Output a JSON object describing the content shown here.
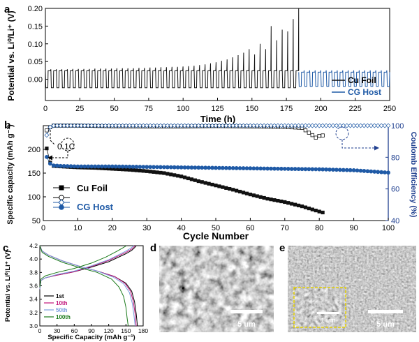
{
  "panels": [
    {
      "letter": "a"
    },
    {
      "letter": "b"
    },
    {
      "letter": "c"
    },
    {
      "letter": "d"
    },
    {
      "letter": "e"
    }
  ],
  "sem_images": {
    "d": {
      "scale_bar": "5 um"
    },
    "e": {
      "scale_bar": "5 um",
      "inset_scale_bar": "1 um"
    }
  },
  "colors": {
    "cu_foil": "#111111",
    "cg_host": "#1f5aa6",
    "axis_blue": "#1f3f8f",
    "inset_box": "#e6d200"
  },
  "chart_data": [
    {
      "panel": "a",
      "type": "line",
      "xlabel": "Time (h)",
      "ylabel": "Potential vs. Li⁰/Li⁺ (V)",
      "xlim": [
        0,
        250
      ],
      "ylim": [
        -0.06,
        0.2
      ],
      "xticks": [
        "0",
        "25",
        "50",
        "75",
        "100",
        "125",
        "150",
        "175",
        "200",
        "225",
        "250"
      ],
      "yticks": [
        "0.00",
        "0.05",
        "0.10",
        "0.15",
        "0.20"
      ],
      "legend": [
        "Cu Foil",
        "CG Host"
      ],
      "legend_position": "bottom-right",
      "series": [
        {
          "name": "Cu Foil",
          "cycle_period_h": 4,
          "plateau_v": 0.024,
          "stripping_v": -0.024,
          "spike_times_h": [
            4,
            8,
            12,
            16,
            20,
            24,
            28,
            32,
            36,
            40,
            44,
            48,
            52,
            56,
            60,
            64,
            68,
            72,
            76,
            80,
            84,
            88,
            92,
            96,
            100,
            104,
            108,
            112,
            116,
            120,
            124,
            128,
            132,
            136,
            140,
            144,
            148,
            152,
            156,
            160,
            164,
            168,
            172,
            176,
            180,
            184
          ],
          "spike_peaks_v": [
            0.028,
            0.028,
            0.028,
            0.028,
            0.029,
            0.029,
            0.029,
            0.029,
            0.03,
            0.03,
            0.03,
            0.03,
            0.031,
            0.031,
            0.031,
            0.031,
            0.032,
            0.032,
            0.033,
            0.033,
            0.034,
            0.034,
            0.035,
            0.035,
            0.036,
            0.037,
            0.038,
            0.04,
            0.042,
            0.045,
            0.048,
            0.052,
            0.056,
            0.062,
            0.068,
            0.075,
            0.085,
            0.07,
            0.1,
            0.085,
            0.15,
            0.11,
            0.14,
            0.135,
            0.17,
            0.2
          ],
          "end_time_h": 184
        },
        {
          "name": "CG Host",
          "cycle_period_h": 4,
          "plateau_v": 0.02,
          "stripping_v": -0.02,
          "spike_peaks_v": 0.025,
          "start_time_h": 184,
          "end_time_h": 250
        }
      ]
    },
    {
      "panel": "b",
      "type": "scatter",
      "xlabel": "Cycle Number",
      "ylabel": "Specific capacity (mAh g⁻¹)",
      "y2label": "Coulomb Efficiency (%)",
      "xlim": [
        0,
        100
      ],
      "ylim": [
        50,
        250
      ],
      "y2lim": [
        40,
        100
      ],
      "xticks": [
        "0",
        "10",
        "20",
        "30",
        "40",
        "50",
        "60",
        "70",
        "80",
        "90",
        "100"
      ],
      "yticks": [
        "50",
        "100",
        "150",
        "200"
      ],
      "y2ticks": [
        "40",
        "60",
        "80",
        "100"
      ],
      "annotation": "0.1C",
      "legend": [
        "Cu Foil",
        "CG Host"
      ],
      "legend_position": "bottom-left",
      "series": [
        {
          "name": "Cu Foil",
          "axis": "capacity",
          "marker": "filled-square",
          "x": [
            1,
            2,
            3,
            5,
            10,
            15,
            20,
            25,
            30,
            35,
            40,
            45,
            50,
            55,
            60,
            65,
            70,
            75,
            80,
            81
          ],
          "y": [
            202,
            172,
            165,
            164,
            162,
            161,
            159,
            157,
            154,
            150,
            143,
            133,
            124,
            115,
            105,
            96,
            89,
            80,
            69,
            67
          ]
        },
        {
          "name": "Cu Foil",
          "axis": "efficiency",
          "marker": "open-square",
          "x": [
            1,
            2,
            3,
            10,
            20,
            30,
            40,
            50,
            60,
            70,
            75,
            78,
            79,
            80,
            81
          ],
          "y": [
            97,
            99,
            100,
            100,
            99.6,
            99.5,
            99.5,
            99.7,
            99.5,
            99.2,
            98.6,
            94,
            92.4,
            93.5,
            93.8
          ]
        },
        {
          "name": "CG Host",
          "axis": "capacity",
          "marker": "filled-circle",
          "x": [
            1,
            2,
            3,
            5,
            10,
            20,
            30,
            40,
            50,
            60,
            70,
            80,
            90,
            100
          ],
          "y": [
            184,
            170,
            166,
            165,
            164,
            164,
            163,
            162,
            161,
            160,
            159,
            158,
            156,
            151
          ]
        },
        {
          "name": "CG Host",
          "axis": "efficiency",
          "marker": "open-diamond",
          "x": [
            1,
            2,
            3,
            10,
            20,
            30,
            40,
            50,
            60,
            70,
            80,
            90,
            100
          ],
          "y": [
            94,
            99,
            100,
            100,
            100,
            100,
            100,
            100,
            100,
            100,
            100,
            100,
            100
          ]
        }
      ]
    },
    {
      "panel": "c",
      "type": "line",
      "xlabel": "Specific Capacity (mAh g⁻¹)",
      "ylabel": "Potential vs. Li⁰/Li⁺ (V)",
      "xlim": [
        0,
        180
      ],
      "ylim": [
        3.0,
        4.2
      ],
      "xticks": [
        "0",
        "30",
        "60",
        "90",
        "120",
        "150",
        "180"
      ],
      "yticks": [
        "3.0",
        "3.2",
        "3.4",
        "3.6",
        "3.8",
        "4.0",
        "4.2"
      ],
      "legend": [
        "1st",
        "10th",
        "50th",
        "100th"
      ],
      "legend_position": "bottom-left",
      "series": [
        {
          "name": "1st",
          "color": "#000000",
          "charge": {
            "x": [
              0,
              2,
              10,
              30,
              60,
              90,
              120,
              150,
              160,
              165,
              168
            ],
            "y": [
              3.55,
              3.68,
              3.72,
              3.76,
              3.81,
              3.88,
              3.96,
              4.08,
              4.13,
              4.17,
              4.2
            ]
          },
          "discharge": {
            "x": [
              0,
              4,
              15,
              40,
              70,
              100,
              130,
              150,
              160,
              165,
              168,
              170
            ],
            "y": [
              4.2,
              4.12,
              4.06,
              3.97,
              3.89,
              3.82,
              3.74,
              3.64,
              3.52,
              3.36,
              3.18,
              3.0
            ]
          }
        },
        {
          "name": "10th",
          "color": "#c0147a",
          "charge": {
            "x": [
              0,
              2,
              10,
              30,
              60,
              90,
              120,
              150,
              160,
              166
            ],
            "y": [
              3.55,
              3.68,
              3.72,
              3.76,
              3.81,
              3.89,
              3.98,
              4.1,
              4.15,
              4.2
            ]
          },
          "discharge": {
            "x": [
              0,
              4,
              15,
              40,
              70,
              100,
              130,
              148,
              158,
              163,
              166,
              168
            ],
            "y": [
              4.2,
              4.12,
              4.06,
              3.97,
              3.89,
              3.82,
              3.74,
              3.64,
              3.52,
              3.36,
              3.18,
              3.0
            ]
          }
        },
        {
          "name": "50th",
          "color": "#7c9fe0",
          "charge": {
            "x": [
              0,
              2,
              10,
              30,
              60,
              90,
              120,
              148,
              158,
              164
            ],
            "y": [
              3.55,
              3.68,
              3.72,
              3.77,
              3.82,
              3.9,
              3.99,
              4.11,
              4.16,
              4.2
            ]
          },
          "discharge": {
            "x": [
              0,
              4,
              15,
              40,
              70,
              100,
              128,
              146,
              156,
              161,
              164,
              166
            ],
            "y": [
              4.2,
              4.12,
              4.06,
              3.97,
              3.89,
              3.82,
              3.73,
              3.63,
              3.5,
              3.34,
              3.16,
              3.0
            ]
          }
        },
        {
          "name": "100th",
          "color": "#1a7a1a",
          "charge": {
            "x": [
              0,
              2,
              10,
              30,
              60,
              90,
              115,
              135,
              145,
              151
            ],
            "y": [
              3.58,
              3.7,
              3.75,
              3.8,
              3.86,
              3.94,
              4.03,
              4.12,
              4.17,
              4.2
            ]
          },
          "discharge": {
            "x": [
              0,
              4,
              15,
              40,
              70,
              100,
              125,
              138,
              146,
              150,
              152,
              154
            ],
            "y": [
              4.2,
              4.1,
              4.04,
              3.95,
              3.87,
              3.8,
              3.7,
              3.58,
              3.44,
              3.28,
              3.12,
              3.0
            ]
          }
        }
      ]
    }
  ]
}
